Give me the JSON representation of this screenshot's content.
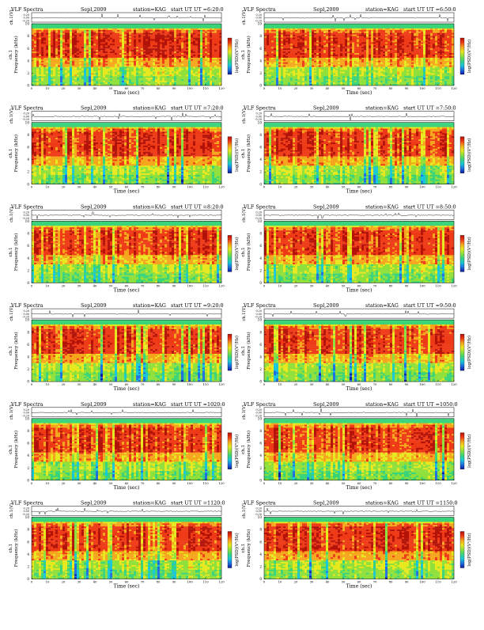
{
  "header_labels": {
    "title": "VLF Spectra",
    "station": "station=KAG",
    "start": "start UT"
  },
  "axis_text": {
    "top_y": "ch.1(V)",
    "freq_y": "Frequency (kHz)",
    "freq_prefix": "ch.1",
    "x": "Time (sec)",
    "colorbar": "log(PSD)(V²/Hz)"
  },
  "colors": {
    "background": "#ffffff",
    "colormap": [
      "#0a1a9c",
      "#1f6fe0",
      "#18c7d8",
      "#39d47a",
      "#8fe03b",
      "#e8e81e",
      "#f5a61c",
      "#ee3a16",
      "#b31208"
    ]
  },
  "chart_data": [
    {
      "type": "heatmap",
      "title": "VLF Spectra",
      "date": "Sepl,2009",
      "station": "station=KAG",
      "start_ut": "6:20:0",
      "xlabel": "Time (sec)",
      "ylabel": "Frequency (kHz)",
      "x_ticks": [
        0,
        10,
        20,
        30,
        40,
        50,
        60,
        70,
        80,
        90,
        100,
        110,
        120
      ],
      "xlim": [
        0,
        120
      ],
      "y_ticks": [
        0,
        2,
        4,
        6,
        8,
        10
      ],
      "ylim": [
        0,
        10
      ],
      "top_ticks": [
        "0.20",
        "0.00",
        "-0.20"
      ],
      "colorbar_label": "log(PSD)(V²/Hz)",
      "colorbar_scale": "blue (low) to red (high)"
    },
    {
      "type": "heatmap",
      "title": "VLF Spectra",
      "date": "Sepl,2009",
      "station": "station=KAG",
      "start_ut": "6:50:0",
      "xlabel": "Time (sec)",
      "ylabel": "Frequency (kHz)",
      "x_ticks": [
        0,
        10,
        20,
        30,
        40,
        50,
        60,
        70,
        80,
        90,
        100,
        110,
        120
      ],
      "xlim": [
        0,
        120
      ],
      "y_ticks": [
        0,
        2,
        4,
        6,
        8,
        10
      ],
      "ylim": [
        0,
        10
      ],
      "top_ticks": [
        "0.20",
        "0.00",
        "-0.20"
      ],
      "colorbar_label": "log(PSD)(V²/Hz)",
      "colorbar_scale": "blue (low) to red (high)"
    },
    {
      "type": "heatmap",
      "title": "VLF Spectra",
      "date": "Sepl,2009",
      "station": "station=KAG",
      "start_ut": "7:20:0",
      "xlabel": "Time (sec)",
      "ylabel": "Frequency (kHz)",
      "x_ticks": [
        0,
        10,
        20,
        30,
        40,
        50,
        60,
        70,
        80,
        90,
        100,
        110,
        120
      ],
      "xlim": [
        0,
        120
      ],
      "y_ticks": [
        0,
        2,
        4,
        6,
        8,
        10
      ],
      "ylim": [
        0,
        10
      ],
      "top_ticks": [
        "0.20",
        "0.00",
        "-0.20"
      ],
      "colorbar_label": "log(PSD)(V²/Hz)",
      "colorbar_scale": "blue (low) to red (high)"
    },
    {
      "type": "heatmap",
      "title": "VLF Spectra",
      "date": "Sepl,2009",
      "station": "station=KAG",
      "start_ut": "7:50:0",
      "xlabel": "Time (sec)",
      "ylabel": "Frequency (kHz)",
      "x_ticks": [
        0,
        10,
        20,
        30,
        40,
        50,
        60,
        70,
        80,
        90,
        100,
        110,
        120
      ],
      "xlim": [
        0,
        120
      ],
      "y_ticks": [
        0,
        2,
        4,
        6,
        8,
        10
      ],
      "ylim": [
        0,
        10
      ],
      "top_ticks": [
        "0.20",
        "0.00",
        "-0.20"
      ],
      "colorbar_label": "log(PSD)(V²/Hz)",
      "colorbar_scale": "blue (low) to red (high)"
    },
    {
      "type": "heatmap",
      "title": "VLF Spectra",
      "date": "Sepl,2009",
      "station": "station=KAG",
      "start_ut": "8:20:0",
      "xlabel": "Time (sec)",
      "ylabel": "Frequency (kHz)",
      "x_ticks": [
        0,
        10,
        20,
        30,
        40,
        50,
        60,
        70,
        80,
        90,
        100,
        110,
        120
      ],
      "xlim": [
        0,
        120
      ],
      "y_ticks": [
        0,
        2,
        4,
        6,
        8,
        10
      ],
      "ylim": [
        0,
        10
      ],
      "top_ticks": [
        "0.20",
        "0.00",
        "-0.20"
      ],
      "colorbar_label": "log(PSD)(V²/Hz)",
      "colorbar_scale": "blue (low) to red (high)"
    },
    {
      "type": "heatmap",
      "title": "VLF Spectra",
      "date": "Sepl,2009",
      "station": "station=KAG",
      "start_ut": "8:50:0",
      "xlabel": "Time (sec)",
      "ylabel": "Frequency (kHz)",
      "x_ticks": [
        0,
        10,
        20,
        30,
        40,
        50,
        60,
        70,
        80,
        90,
        100,
        110,
        120
      ],
      "xlim": [
        0,
        120
      ],
      "y_ticks": [
        0,
        2,
        4,
        6,
        8,
        10
      ],
      "ylim": [
        0,
        10
      ],
      "top_ticks": [
        "0.20",
        "0.00",
        "-0.20"
      ],
      "colorbar_label": "log(PSD)(V²/Hz)",
      "colorbar_scale": "blue (low) to red (high)"
    },
    {
      "type": "heatmap",
      "title": "VLF Spectra",
      "date": "Sepl,2009",
      "station": "station=KAG",
      "start_ut": "9:20:0",
      "xlabel": "Time (sec)",
      "ylabel": "Frequency (kHz)",
      "x_ticks": [
        0,
        10,
        20,
        30,
        40,
        50,
        60,
        70,
        80,
        90,
        100,
        110,
        120
      ],
      "xlim": [
        0,
        120
      ],
      "y_ticks": [
        0,
        2,
        4,
        6,
        8,
        10
      ],
      "ylim": [
        0,
        10
      ],
      "top_ticks": [
        "0.20",
        "0.00",
        "-0.20"
      ],
      "colorbar_label": "log(PSD)(V²/Hz)",
      "colorbar_scale": "blue (low) to red (high)"
    },
    {
      "type": "heatmap",
      "title": "VLF Spectra",
      "date": "Sepl,2009",
      "station": "station=KAG",
      "start_ut": "9:50:0",
      "xlabel": "Time (sec)",
      "ylabel": "Frequency (kHz)",
      "x_ticks": [
        0,
        10,
        20,
        30,
        40,
        50,
        60,
        70,
        80,
        90,
        100,
        110,
        120
      ],
      "xlim": [
        0,
        120
      ],
      "y_ticks": [
        0,
        2,
        4,
        6,
        8,
        10
      ],
      "ylim": [
        0,
        10
      ],
      "top_ticks": [
        "0.20",
        "0.00",
        "-0.20"
      ],
      "colorbar_label": "log(PSD)(V²/Hz)",
      "colorbar_scale": "blue (low) to red (high)"
    },
    {
      "type": "heatmap",
      "title": "VLF Spectra",
      "date": "Sepl,2009",
      "station": "station=KAG",
      "start_ut": "1020:0",
      "xlabel": "Time (sec)",
      "ylabel": "Frequency (kHz)",
      "x_ticks": [
        0,
        10,
        20,
        30,
        40,
        50,
        60,
        70,
        80,
        90,
        100,
        110,
        120
      ],
      "xlim": [
        0,
        120
      ],
      "y_ticks": [
        0,
        2,
        4,
        6,
        8,
        10
      ],
      "ylim": [
        0,
        10
      ],
      "top_ticks": [
        "0.20",
        "0.00",
        "-0.20"
      ],
      "colorbar_label": "log(PSD)(V²/Hz)",
      "colorbar_scale": "blue (low) to red (high)"
    },
    {
      "type": "heatmap",
      "title": "VLF Spectra",
      "date": "Sepl,2009",
      "station": "station=KAG",
      "start_ut": "1050:0",
      "xlabel": "Time (sec)",
      "ylabel": "Frequency (kHz)",
      "x_ticks": [
        0,
        10,
        20,
        30,
        40,
        50,
        60,
        70,
        80,
        90,
        100,
        110,
        120
      ],
      "xlim": [
        0,
        120
      ],
      "y_ticks": [
        0,
        2,
        4,
        6,
        8,
        10
      ],
      "ylim": [
        0,
        10
      ],
      "top_ticks": [
        "0.20",
        "0.00",
        "-0.20"
      ],
      "colorbar_label": "log(PSD)(V²/Hz)",
      "colorbar_scale": "blue (low) to red (high)"
    },
    {
      "type": "heatmap",
      "title": "VLF Spectra",
      "date": "Sepl,2009",
      "station": "station=KAG",
      "start_ut": "1120:0",
      "xlabel": "Time (sec)",
      "ylabel": "Frequency (kHz)",
      "x_ticks": [
        0,
        10,
        20,
        30,
        40,
        50,
        60,
        70,
        80,
        90,
        100,
        110,
        120
      ],
      "xlim": [
        0,
        120
      ],
      "y_ticks": [
        0,
        2,
        4,
        6,
        8,
        10
      ],
      "ylim": [
        0,
        10
      ],
      "top_ticks": [
        "0.20",
        "0.00",
        "-0.20"
      ],
      "colorbar_label": "log(PSD)(V²/Hz)",
      "colorbar_scale": "blue (low) to red (high)"
    },
    {
      "type": "heatmap",
      "title": "VLF Spectra",
      "date": "Sepl,2009",
      "station": "station=KAG",
      "start_ut": "1150:0",
      "xlabel": "Time (sec)",
      "ylabel": "Frequency (kHz)",
      "x_ticks": [
        0,
        10,
        20,
        30,
        40,
        50,
        60,
        70,
        80,
        90,
        100,
        110,
        120
      ],
      "xlim": [
        0,
        120
      ],
      "y_ticks": [
        0,
        2,
        4,
        6,
        8,
        10
      ],
      "ylim": [
        0,
        10
      ],
      "top_ticks": [
        "0.20",
        "0.00",
        "-0.20"
      ],
      "colorbar_label": "log(PSD)(V²/Hz)",
      "colorbar_scale": "blue (low) to red (high)"
    }
  ]
}
